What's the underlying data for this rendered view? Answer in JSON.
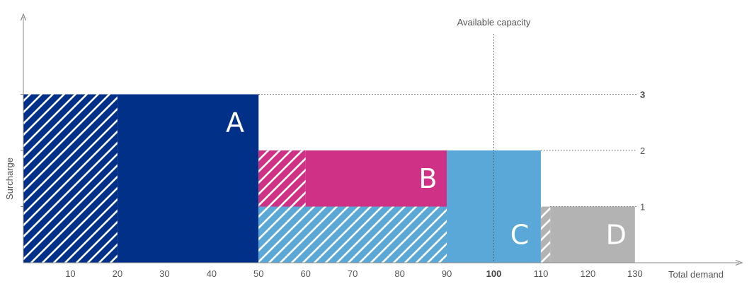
{
  "chart_data": {
    "type": "bar",
    "xlabel": "Total demand",
    "ylabel": "Surcharge",
    "xlim": [
      0,
      130
    ],
    "ylim": [
      0,
      3
    ],
    "x_ticks": [
      {
        "value": 10,
        "label": "10",
        "bold": false
      },
      {
        "value": 20,
        "label": "20",
        "bold": false
      },
      {
        "value": 30,
        "label": "30",
        "bold": false
      },
      {
        "value": 40,
        "label": "40",
        "bold": false
      },
      {
        "value": 50,
        "label": "50",
        "bold": false
      },
      {
        "value": 60,
        "label": "60",
        "bold": false
      },
      {
        "value": 70,
        "label": "70",
        "bold": false
      },
      {
        "value": 80,
        "label": "80",
        "bold": false
      },
      {
        "value": 90,
        "label": "90",
        "bold": false
      },
      {
        "value": 100,
        "label": "100",
        "bold": true
      },
      {
        "value": 110,
        "label": "110",
        "bold": false
      },
      {
        "value": 120,
        "label": "120",
        "bold": false
      },
      {
        "value": 130,
        "label": "130",
        "bold": false
      }
    ],
    "y_ticks": [
      {
        "value": 1,
        "label": "1",
        "bold": false
      },
      {
        "value": 2,
        "label": "2",
        "bold": false
      },
      {
        "value": 3,
        "label": "3",
        "bold": true
      }
    ],
    "capacity_line": {
      "x": 100,
      "label": "Available capacity"
    },
    "segments": [
      {
        "name": "A",
        "x0": 0,
        "x1": 20,
        "y0": 0,
        "y1": 3,
        "color": "#003087",
        "hatched": true
      },
      {
        "name": "A",
        "x0": 20,
        "x1": 50,
        "y0": 0,
        "y1": 3,
        "color": "#003087",
        "hatched": false
      },
      {
        "name": "B",
        "x0": 50,
        "x1": 60,
        "y0": 1,
        "y1": 2,
        "color": "#cf3186",
        "hatched": true
      },
      {
        "name": "B",
        "x0": 60,
        "x1": 90,
        "y0": 1,
        "y1": 2,
        "color": "#cf3186",
        "hatched": false
      },
      {
        "name": "C",
        "x0": 50,
        "x1": 90,
        "y0": 0,
        "y1": 1,
        "color": "#5aa8d8",
        "hatched": true
      },
      {
        "name": "C",
        "x0": 90,
        "x1": 110,
        "y0": 0,
        "y1": 2,
        "color": "#5aa8d8",
        "hatched": false
      },
      {
        "name": "D",
        "x0": 110,
        "x1": 112,
        "y0": 0,
        "y1": 1,
        "color": "#b3b3b3",
        "hatched": true
      },
      {
        "name": "D",
        "x0": 112,
        "x1": 130,
        "y0": 0,
        "y1": 1,
        "color": "#b3b3b3",
        "hatched": false
      }
    ],
    "labels": [
      {
        "text": "A",
        "x": 45,
        "y": 2.5
      },
      {
        "text": "B",
        "x": 86,
        "y": 1.5
      },
      {
        "text": "C",
        "x": 105.5,
        "y": 0.5
      },
      {
        "text": "D",
        "x": 126,
        "y": 0.5
      }
    ],
    "grid": false,
    "legend": "none"
  }
}
